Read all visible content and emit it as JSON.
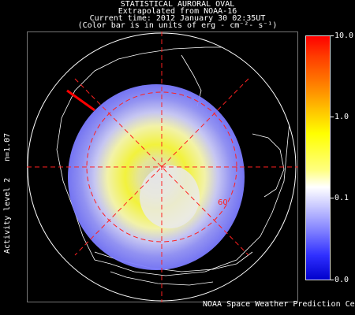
{
  "header": {
    "title": "STATISTICAL AURORAL OVAL",
    "subtitle": "Extrapolated from NOAA-16",
    "current_time": "Current time: 2012 January 30 02:35UT",
    "units_note": "(Color bar is in units of erg - cm⁻²- s⁻¹)"
  },
  "side_labels": {
    "n_value": "n=1.07",
    "activity": "Activity level 2"
  },
  "colorbar": {
    "ticks": [
      "10.0",
      "1.0",
      "0.1",
      "0.0"
    ]
  },
  "map": {
    "latitude_label": "60",
    "grid_color": "#ff2020"
  },
  "footer": "NOAA Space Weather Prediction Center"
}
